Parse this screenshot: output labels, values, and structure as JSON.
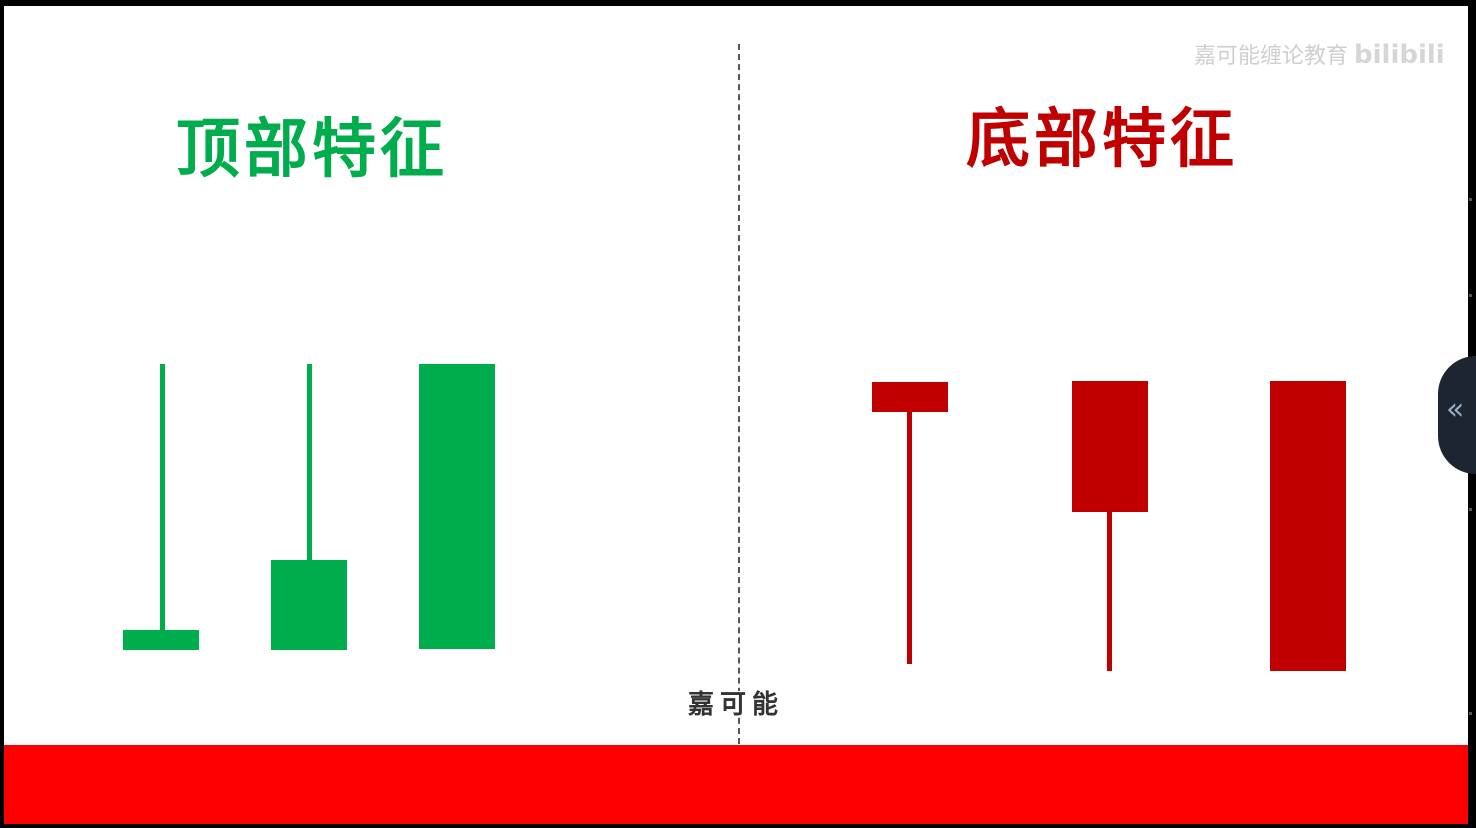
{
  "colors": {
    "green": "#00ad4c",
    "red": "#c00000",
    "band": "#ff0000",
    "background": "#ffffff"
  },
  "titles": {
    "top": "顶部特征",
    "bottom": "底部特征"
  },
  "watermark": {
    "text": "嘉可能缠论教育",
    "logo": "bilibili"
  },
  "subtitle": "嘉可能",
  "side_tab": {
    "icon": "double-chevron-left-icon",
    "glyph": "«"
  },
  "top_candles": [
    {
      "name": "top-candle-1",
      "color": "green"
    },
    {
      "name": "top-candle-2",
      "color": "green"
    },
    {
      "name": "top-candle-3",
      "color": "green"
    }
  ],
  "bottom_candles": [
    {
      "name": "bottom-candle-1",
      "color": "red"
    },
    {
      "name": "bottom-candle-2",
      "color": "red"
    },
    {
      "name": "bottom-candle-3",
      "color": "red"
    }
  ]
}
